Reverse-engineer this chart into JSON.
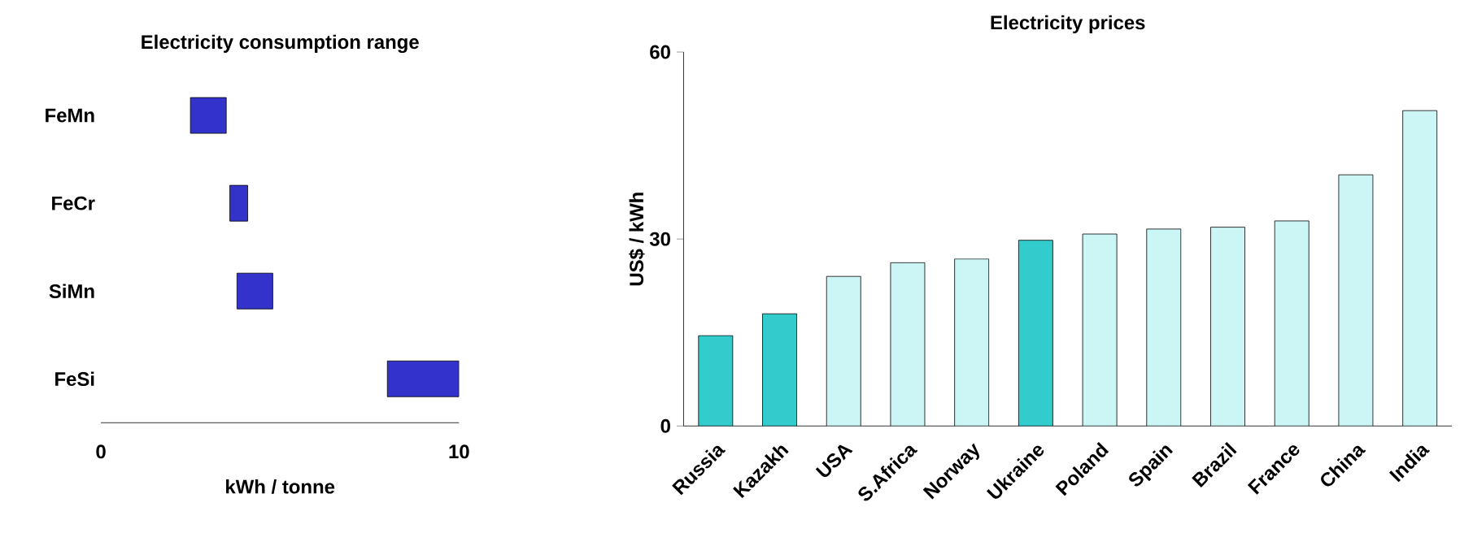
{
  "chart_data": [
    {
      "type": "bar",
      "title": "Electricity consumption range",
      "xlabel": "kWh / tonne",
      "orientation": "horizontal",
      "categories": [
        "FeMn",
        "FeCr",
        "SiMn",
        "FeSi"
      ],
      "base": [
        2.5,
        3.6,
        3.8,
        8
      ],
      "values": [
        1,
        0.5,
        1,
        2
      ],
      "color": "#3333cc",
      "xlim": [
        0,
        10
      ],
      "xticks": [
        0,
        10
      ]
    },
    {
      "type": "bar",
      "title": "Electricity prices",
      "ylabel": "US$ / kWh",
      "categories": [
        "Russia",
        "Kazakh",
        "USA",
        "S.Africa",
        "Norway",
        "Ukraine",
        "Poland",
        "Spain",
        "Brazil",
        "France",
        "China",
        "India"
      ],
      "values": [
        14.5,
        18,
        24,
        26.2,
        26.8,
        29.8,
        30.8,
        31.6,
        31.9,
        32.9,
        40.3,
        50.6
      ],
      "colors": [
        "#33cccc",
        "#33cccc",
        "#ccf5f5",
        "#ccf5f5",
        "#ccf5f5",
        "#33cccc",
        "#ccf5f5",
        "#ccf5f5",
        "#ccf5f5",
        "#ccf5f5",
        "#ccf5f5",
        "#ccf5f5"
      ],
      "ylim": [
        0,
        60
      ],
      "yticks": [
        0,
        30,
        60
      ]
    }
  ]
}
